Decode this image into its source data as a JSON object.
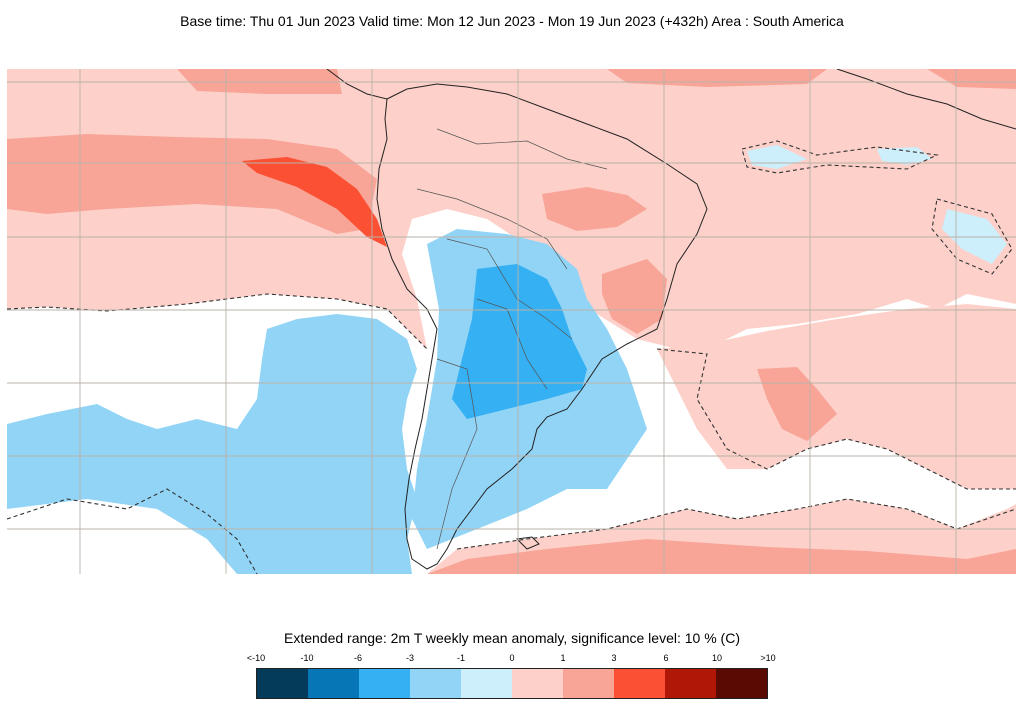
{
  "header": {
    "title": "Base time: Thu 01 Jun 2023 Valid time: Mon 12 Jun 2023 - Mon 19 Jun 2023 (+432h) Area : South America"
  },
  "map": {
    "area": "South America",
    "colors": {
      "background": "#ffffff",
      "grid": "#b9b2a8",
      "coast": "#222222",
      "border": "#555555",
      "significance_contour": "#333333"
    }
  },
  "legend": {
    "title": "Extended range: 2m T weekly mean anomaly, significance level: 10 % (C)",
    "labels": [
      "<-10",
      "-10",
      "-6",
      "-3",
      "-1",
      "0",
      "1",
      "3",
      "6",
      "10",
      ">10"
    ],
    "colors": [
      "#043a5a",
      "#0676b6",
      "#35b0f2",
      "#92d4f6",
      "#cdeefb",
      "#fdd1ca",
      "#f8a597",
      "#fb5033",
      "#b01706",
      "#5a0a02"
    ]
  }
}
